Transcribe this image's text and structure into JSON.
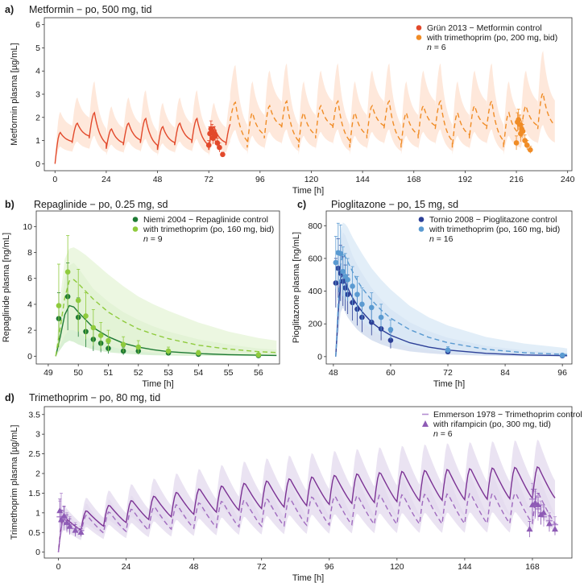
{
  "chart_data": [
    {
      "panel": "a)",
      "type": "line",
      "title": "Metformin − po, 500 mg, tid",
      "xlabel": "Time [h]",
      "ylabel": "Metformin plasma [µg/mL]",
      "xlim": [
        -5,
        242
      ],
      "ylim": [
        -0.3,
        6.3
      ],
      "xticks": [
        0,
        24,
        48,
        72,
        96,
        120,
        144,
        168,
        192,
        216,
        240
      ],
      "yticks": [
        0,
        1,
        2,
        3,
        4,
        5,
        6
      ],
      "legend_position": "top-right",
      "legend": [
        "Grün 2013 − Metformin control",
        "with trimethoprim (po, 200 mg, bid)",
        "n = 6"
      ],
      "series": [
        {
          "name": "Metformin control (simulation)",
          "style": "solid",
          "color": "#e2492b",
          "band": "#fde0cf",
          "profile": {
            "start": 0,
            "end": 82,
            "interval": 8,
            "cmax": [
              1.35,
              1.75,
              2.2,
              1.5,
              1.75,
              1.95,
              1.6,
              1.75,
              1.95,
              1.6,
              1.75
            ],
            "cmin": [
              0,
              0.9,
              1.1,
              0.65,
              0.8,
              0.9,
              0.6,
              0.8,
              0.9,
              0.6,
              0.8
            ],
            "tmax": 2.5
          }
        },
        {
          "name": "with trimethoprim (simulation)",
          "style": "dashed",
          "color": "#f08c26",
          "band": "#fde0cf",
          "profile": {
            "start": 82,
            "end": 234,
            "interval": 8,
            "cmax": [
              2.65,
              2.2,
              2.5,
              2.7,
              2.2,
              2.5,
              2.7,
              2.2,
              2.5,
              2.7,
              2.2,
              2.5,
              2.7,
              2.2,
              2.5,
              2.7,
              2.2,
              2.5,
              3.05
            ],
            "cmin": [
              1.85,
              0.7,
              1.1,
              1.5,
              0.7,
              1.1,
              1.5,
              0.7,
              1.1,
              1.5,
              0.7,
              1.1,
              1.5,
              0.7,
              1.1,
              1.5,
              0.7,
              1.1,
              1.5
            ],
            "tmax": 2.5
          }
        },
        {
          "name": "Metformin control (observed)",
          "marker": "circle",
          "color": "#e2492b",
          "x": [
            72,
            72.5,
            73,
            73.5,
            74,
            74.5,
            75,
            76,
            77,
            78.5
          ],
          "y": [
            0.8,
            1.3,
            1.5,
            1.4,
            1.1,
            1.3,
            1.2,
            0.9,
            0.7,
            0.4
          ],
          "err": [
            0.2,
            0.3,
            0.35,
            0.3,
            0.25,
            0.3,
            0.25,
            0.2,
            0.2,
            0.1
          ]
        },
        {
          "name": "with trimethoprim (observed)",
          "marker": "circle",
          "color": "#f08c26",
          "x": [
            216,
            216.5,
            217,
            217.5,
            218,
            218.5,
            219,
            220,
            221,
            222.5
          ],
          "y": [
            0.9,
            1.8,
            1.9,
            1.7,
            1.3,
            1.5,
            1.4,
            1.0,
            0.8,
            0.6
          ],
          "err": [
            0.3,
            0.4,
            0.45,
            0.4,
            0.35,
            0.35,
            0.3,
            0.25,
            0.2,
            0.15
          ]
        }
      ]
    },
    {
      "panel": "b)",
      "type": "line",
      "title": "Repaglinide − po, 0.25 mg, sd",
      "xlabel": "Time [h]",
      "ylabel": "Repaglinide plasma [ng/mL]",
      "xlim": [
        48.6,
        56.7
      ],
      "ylim": [
        -0.6,
        11.2
      ],
      "xticks": [
        49,
        50,
        51,
        52,
        53,
        54,
        55,
        56
      ],
      "yticks": [
        0,
        2,
        4,
        6,
        8,
        10
      ],
      "legend_position": "top-right",
      "legend": [
        "Niemi 2004 − Repaglinide control",
        "with trimethoprim (po, 160 mg, bid)",
        "n = 9"
      ],
      "series": [
        {
          "name": "Repaglinide control (simulation)",
          "style": "solid",
          "color": "#1e7a34",
          "band": "#ccebc5",
          "x": [
            49.25,
            49.4,
            49.55,
            49.7,
            49.85,
            50.0,
            50.25,
            50.5,
            51.0,
            51.5,
            52.0,
            52.5,
            53.0,
            54.0,
            55.0,
            56.0,
            56.6
          ],
          "y": [
            0,
            1.5,
            3.2,
            3.9,
            3.8,
            3.4,
            2.8,
            2.2,
            1.5,
            1.0,
            0.7,
            0.5,
            0.35,
            0.2,
            0.12,
            0.08,
            0.06
          ],
          "lo": [
            0,
            0.5,
            1.0,
            1.2,
            1.1,
            0.9,
            0.7,
            0.5,
            0.3,
            0.2,
            0.12,
            0.08,
            0.05,
            0.03,
            0.02,
            0.01,
            0.01
          ],
          "hi": [
            0,
            3.5,
            6.0,
            7.0,
            7.2,
            6.8,
            6.0,
            5.2,
            4.2,
            3.4,
            2.8,
            2.3,
            1.9,
            1.3,
            0.9,
            0.6,
            0.5
          ]
        },
        {
          "name": "with trimethoprim (simulation)",
          "style": "dashed",
          "color": "#8fcb3d",
          "band": "#e6f4d7",
          "x": [
            49.25,
            49.4,
            49.55,
            49.7,
            49.85,
            50.0,
            50.25,
            50.5,
            51.0,
            51.5,
            52.0,
            52.5,
            53.0,
            54.0,
            55.0,
            56.0,
            56.6
          ],
          "y": [
            0,
            2.2,
            4.5,
            5.8,
            5.9,
            5.6,
            5.0,
            4.4,
            3.4,
            2.7,
            2.1,
            1.7,
            1.35,
            0.85,
            0.55,
            0.35,
            0.28
          ],
          "lo": [
            0,
            0.8,
            1.6,
            2.0,
            2.0,
            1.8,
            1.5,
            1.2,
            0.8,
            0.5,
            0.35,
            0.25,
            0.18,
            0.1,
            0.06,
            0.04,
            0.03
          ],
          "hi": [
            0,
            4.5,
            7.5,
            8.3,
            8.4,
            8.2,
            7.8,
            7.3,
            6.3,
            5.4,
            4.6,
            4.0,
            3.5,
            2.6,
            1.9,
            1.4,
            1.2
          ]
        },
        {
          "name": "Repaglinide control (observed)",
          "marker": "circle",
          "color": "#1e7a34",
          "x": [
            49.35,
            49.65,
            50.0,
            50.25,
            50.5,
            50.75,
            51.0,
            51.5,
            52.0,
            53.0,
            54.0,
            56.0
          ],
          "y": [
            2.9,
            4.6,
            3.0,
            1.9,
            1.3,
            1.0,
            0.6,
            0.4,
            0.4,
            0.25,
            0.15,
            0.05
          ],
          "err": [
            2.0,
            2.6,
            1.5,
            1.2,
            0.9,
            0.7,
            0.4,
            0.3,
            0.25,
            0.15,
            0.1,
            0.05
          ]
        },
        {
          "name": "with trimethoprim (observed)",
          "marker": "circle",
          "color": "#8fcb3d",
          "x": [
            49.35,
            49.65,
            50.0,
            50.25,
            50.5,
            50.75,
            51.0,
            51.5,
            52.0,
            53.0,
            54.0,
            56.0
          ],
          "y": [
            3.9,
            6.5,
            4.3,
            3.1,
            2.2,
            1.6,
            1.2,
            0.9,
            0.7,
            0.4,
            0.25,
            0.1
          ],
          "err": [
            3.2,
            2.8,
            2.4,
            1.8,
            1.4,
            1.0,
            0.8,
            0.6,
            0.5,
            0.3,
            0.2,
            0.1
          ]
        }
      ]
    },
    {
      "panel": "c)",
      "type": "line",
      "title": "Pioglitazone − po, 15 mg, sd",
      "xlabel": "Time [h]",
      "ylabel": "Pioglitazone plasma [ng/mL]",
      "xlim": [
        46.5,
        98
      ],
      "ylim": [
        -45,
        890
      ],
      "xticks": [
        48,
        60,
        72,
        84,
        96
      ],
      "yticks": [
        0,
        200,
        400,
        600,
        800
      ],
      "legend_position": "top-right",
      "legend": [
        "Tornio 2008 − Pioglitazone control",
        "with trimethoprim (po, 160 mg, bid)",
        "n = 16"
      ],
      "series": [
        {
          "name": "Pioglitazone control (simulation)",
          "style": "solid",
          "color": "#2c3f97",
          "band": "#ccd8ec",
          "x": [
            48.5,
            49.0,
            49.5,
            50.0,
            50.5,
            51.0,
            52,
            53,
            54,
            56,
            58,
            60,
            64,
            68,
            72,
            80,
            88,
            96,
            97
          ],
          "y": [
            0,
            260,
            480,
            500,
            460,
            420,
            360,
            315,
            275,
            210,
            165,
            130,
            85,
            58,
            40,
            20,
            10,
            6,
            5
          ],
          "lo": [
            0,
            120,
            270,
            300,
            270,
            240,
            200,
            165,
            140,
            100,
            75,
            55,
            32,
            20,
            12,
            5,
            2,
            1,
            1
          ],
          "hi": [
            0,
            460,
            700,
            760,
            740,
            700,
            620,
            560,
            510,
            420,
            350,
            290,
            210,
            155,
            115,
            65,
            38,
            25,
            22
          ]
        },
        {
          "name": "with trimethoprim (simulation)",
          "style": "dashed",
          "color": "#5a9ad1",
          "band": "#d8e8f5",
          "x": [
            48.5,
            49.0,
            49.5,
            50.0,
            50.5,
            51.0,
            52,
            53,
            54,
            56,
            58,
            60,
            64,
            68,
            72,
            80,
            88,
            96,
            97
          ],
          "y": [
            0,
            300,
            560,
            630,
            610,
            580,
            520,
            465,
            420,
            345,
            285,
            235,
            165,
            118,
            85,
            45,
            24,
            14,
            12
          ],
          "lo": [
            0,
            150,
            320,
            380,
            360,
            330,
            290,
            250,
            215,
            165,
            125,
            95,
            60,
            40,
            27,
            12,
            5,
            2,
            2
          ],
          "hi": [
            0,
            520,
            760,
            820,
            810,
            790,
            730,
            680,
            630,
            540,
            470,
            410,
            310,
            240,
            190,
            120,
            80,
            55,
            50
          ]
        },
        {
          "name": "Pioglitazone control (observed)",
          "marker": "circle",
          "color": "#2c3f97",
          "x": [
            48.5,
            49.0,
            49.5,
            50.0,
            50.5,
            51.0,
            52.0,
            53.0,
            54.0,
            56.0,
            58.0,
            60.0,
            72.0,
            96.0
          ],
          "y": [
            450,
            540,
            510,
            460,
            420,
            380,
            330,
            290,
            240,
            210,
            170,
            100,
            30,
            5
          ],
          "err": [
            150,
            180,
            170,
            150,
            140,
            120,
            110,
            100,
            90,
            80,
            70,
            50,
            15,
            5
          ]
        },
        {
          "name": "with trimethoprim (observed)",
          "marker": "circle",
          "color": "#5a9ad1",
          "x": [
            48.5,
            49.0,
            49.5,
            50.0,
            50.5,
            51.0,
            52.0,
            53.0,
            54.0,
            56.0,
            58.0,
            60.0,
            72.0,
            96.0
          ],
          "y": [
            575,
            635,
            630,
            520,
            490,
            470,
            430,
            380,
            320,
            300,
            240,
            165,
            40,
            8
          ],
          "err": [
            160,
            180,
            175,
            150,
            140,
            130,
            120,
            110,
            100,
            90,
            80,
            60,
            20,
            5
          ]
        }
      ]
    },
    {
      "panel": "d)",
      "type": "line",
      "title": "Trimethoprim − po, 80 mg, tid",
      "xlabel": "Time [h]",
      "ylabel": "Trimethoprim plasma [µg/mL]",
      "xlim": [
        -5,
        182
      ],
      "ylim": [
        -0.15,
        3.7
      ],
      "xticks": [
        0,
        24,
        48,
        72,
        96,
        120,
        144,
        168
      ],
      "yticks": [
        0,
        0.5,
        1,
        1.5,
        2,
        2.5,
        3,
        3.5
      ],
      "legend_position": "top-right",
      "legend": [
        "Emmerson 1978 − Trimethoprim control",
        "with rifampicin (po, 300 mg, tid)",
        "n = 6"
      ],
      "series": [
        {
          "name": "Trimethoprim control (simulation)",
          "style": "solid",
          "color": "#7b3294",
          "band": "#e3d9ee",
          "profile": {
            "start": 0,
            "end": 176,
            "interval": 8,
            "peak_start": 0.9,
            "peak_end": 2.3,
            "trough_start": 0.45,
            "trough_end": 1.45,
            "approach": 0.12,
            "tmax": 2
          }
        },
        {
          "name": "with rifampicin (simulation)",
          "style": "dashed",
          "color": "#a06bbf",
          "band": "#e3d9ee",
          "profile": {
            "start": 0,
            "end": 176,
            "interval": 8,
            "peak_start": 0.85,
            "peak_end": 1.55,
            "trough_start": 0.4,
            "trough_end": 0.75,
            "approach": 0.15,
            "tmax": 2
          }
        },
        {
          "name": "Trimethoprim control (observed)",
          "marker": "dash",
          "color": "#b48dd0",
          "x": [
            0.5,
            1,
            2,
            3,
            4,
            6,
            8,
            168,
            169,
            170,
            171,
            172,
            174,
            176
          ],
          "y": [
            0.9,
            1.05,
            0.85,
            0.75,
            0.7,
            0.6,
            0.55,
            1.35,
            1.2,
            1.1,
            1.0,
            0.9,
            0.8,
            0.7
          ],
          "err": [
            0.4,
            0.45,
            0.3,
            0.25,
            0.2,
            0.15,
            0.1,
            0.4,
            0.35,
            0.3,
            0.3,
            0.25,
            0.2,
            0.2
          ]
        },
        {
          "name": "with rifampicin (observed)",
          "marker": "triangle",
          "color": "#8e5bb5",
          "x": [
            0.5,
            1,
            2,
            3,
            4,
            6,
            8,
            167,
            168,
            169,
            170,
            171,
            172,
            174,
            176
          ],
          "y": [
            1.05,
            0.82,
            0.92,
            0.75,
            0.65,
            0.55,
            0.5,
            0.58,
            1.2,
            1.25,
            1.2,
            0.95,
            1.0,
            0.72,
            0.58
          ],
          "err": [
            0.3,
            0.25,
            0.25,
            0.2,
            0.2,
            0.15,
            0.1,
            0.2,
            0.4,
            0.35,
            0.3,
            0.25,
            0.2,
            0.2,
            0.15
          ]
        }
      ]
    }
  ]
}
